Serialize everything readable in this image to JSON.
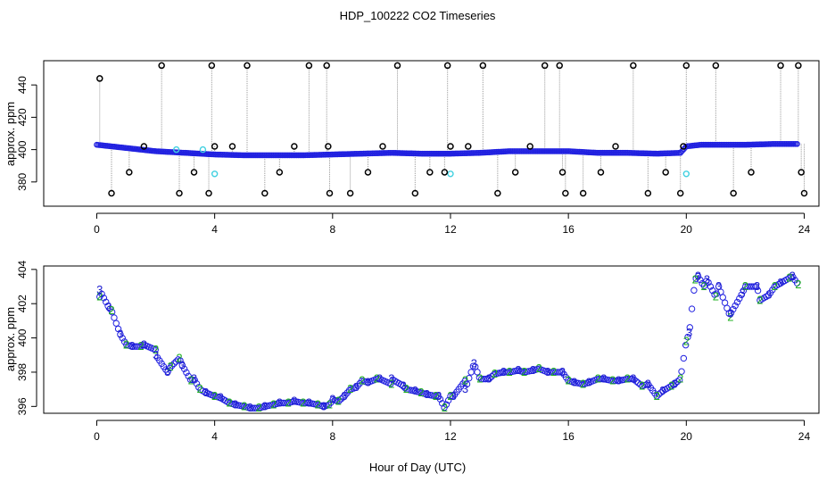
{
  "figure_title": "HDP_100222  CO2 Timeseries",
  "shared_xlabel": "Hour of Day (UTC)",
  "colors": {
    "axis": "#000000",
    "blue_points": "#2020e0",
    "cyan_points": "#40d0e0",
    "black_points": "#000000",
    "guide_lines": "#9a9a9a",
    "series2": "#20b020",
    "series3": "#2020d0"
  },
  "chart_data": [
    {
      "type": "scatter",
      "panel": "top",
      "title": "",
      "xlabel": "",
      "ylabel": "approx. ppm",
      "xlim": [
        -1.8,
        24.5
      ],
      "ylim": [
        365,
        455
      ],
      "x_ticks": [
        0,
        4,
        8,
        12,
        16,
        20,
        24
      ],
      "y_ticks": [
        380,
        400,
        420,
        440
      ],
      "baseline_series": {
        "name": "blue",
        "x": [
          0,
          0.5,
          1,
          1.5,
          2,
          2.5,
          3,
          3.5,
          4,
          5,
          6,
          7,
          8,
          9,
          10,
          11,
          12,
          13,
          14,
          15,
          16,
          17,
          18,
          19,
          19.8,
          20,
          20.5,
          21,
          22,
          23,
          23.8
        ],
        "values": [
          403,
          402,
          401,
          400,
          399,
          398.5,
          398,
          397.5,
          397,
          396.5,
          396.5,
          396.5,
          397,
          397.5,
          398,
          397.5,
          397.5,
          398,
          399,
          399,
          399,
          398,
          398,
          397.5,
          398,
          402,
          403,
          403,
          403,
          403.5,
          403.5
        ]
      },
      "spikes": {
        "name": "black",
        "x": [
          0.1,
          0.5,
          1.1,
          1.6,
          2.2,
          2.8,
          3.3,
          3.8,
          3.9,
          4.0,
          4.6,
          5.1,
          5.7,
          6.2,
          6.7,
          7.2,
          7.8,
          7.85,
          7.9,
          8.6,
          9.2,
          9.7,
          10.2,
          10.8,
          11.3,
          11.8,
          11.9,
          12.0,
          12.6,
          13.1,
          13.6,
          14.2,
          14.7,
          15.2,
          15.7,
          15.8,
          15.9,
          16.5,
          17.1,
          17.6,
          18.2,
          18.7,
          19.3,
          19.8,
          19.9,
          20.0,
          21.0,
          21.6,
          22.2,
          23.2,
          23.8,
          23.9,
          24.0
        ],
        "values": [
          444,
          373,
          386,
          402,
          452,
          373,
          386,
          373,
          452,
          402,
          402,
          452,
          373,
          386,
          402,
          452,
          452,
          402,
          373,
          373,
          386,
          402,
          452,
          373,
          386,
          386,
          452,
          402,
          402,
          452,
          373,
          386,
          402,
          452,
          452,
          386,
          373,
          373,
          386,
          402,
          452,
          373,
          386,
          373,
          402,
          452,
          452,
          373,
          386,
          452,
          452,
          386,
          373
        ]
      },
      "cyan_points": {
        "name": "cyan",
        "x": [
          2.7,
          3.6,
          4.0,
          12.0,
          20.0
        ],
        "values": [
          400,
          400,
          385,
          385,
          385
        ]
      }
    },
    {
      "type": "scatter",
      "panel": "bottom",
      "title": "",
      "xlabel": "Hour of Day (UTC)",
      "ylabel": "approx. ppm",
      "xlim": [
        -1.8,
        24.5
      ],
      "ylim": [
        395.6,
        404.2
      ],
      "x_ticks": [
        0,
        4,
        8,
        12,
        16,
        20,
        24
      ],
      "y_ticks": [
        396,
        398,
        400,
        402,
        404
      ],
      "series": [
        {
          "name": "2",
          "x": [
            0.1,
            0.5,
            1.0,
            1.5,
            2.0,
            2.5,
            2.8,
            3.2,
            3.5,
            4.0,
            4.5,
            5.0,
            5.5,
            6.0,
            6.5,
            7.0,
            7.5,
            7.9,
            8.2,
            8.6,
            9.0,
            9.5,
            10.0,
            10.5,
            11.0,
            11.5,
            11.8,
            12.0,
            12.5,
            13.0,
            13.5,
            14.0,
            14.5,
            15.0,
            15.5,
            16.0,
            16.5,
            17.0,
            17.5,
            18.0,
            18.5,
            19.0,
            19.5,
            19.8,
            20.0,
            20.3,
            20.6,
            21.0,
            21.5,
            22.0,
            22.5,
            23.0,
            23.5,
            23.8
          ],
          "values": [
            402.4,
            401.6,
            399.6,
            399.5,
            399.3,
            398.3,
            398.8,
            397.5,
            397.0,
            396.6,
            396.2,
            396.0,
            395.9,
            396.1,
            396.2,
            396.2,
            396.1,
            396.1,
            396.3,
            397.0,
            397.5,
            397.6,
            397.3,
            397.0,
            396.8,
            396.6,
            395.9,
            396.6,
            397.5,
            397.6,
            397.9,
            398.0,
            398.0,
            398.2,
            398.0,
            397.5,
            397.3,
            397.6,
            397.5,
            397.6,
            397.2,
            396.6,
            397.2,
            397.6,
            399.8,
            403.4,
            403.0,
            402.4,
            401.2,
            403.0,
            402.2,
            403.0,
            403.5,
            403.1
          ]
        },
        {
          "name": "3",
          "x": [
            0.1,
            0.4,
            0.8,
            1.2,
            1.6,
            2.0,
            2.4,
            2.9,
            3.3,
            3.7,
            4.2,
            4.7,
            5.2,
            5.7,
            6.2,
            6.7,
            7.2,
            7.7,
            8.0,
            8.4,
            8.8,
            9.2,
            9.6,
            10.0,
            10.4,
            10.8,
            11.2,
            11.6,
            12.1,
            12.5,
            12.8,
            13.3,
            13.8,
            14.3,
            14.8,
            15.3,
            15.8,
            16.2,
            16.7,
            17.2,
            17.7,
            18.2,
            18.7,
            19.2,
            19.6,
            20.1,
            20.4,
            20.7,
            21.1,
            21.5,
            21.9,
            22.4,
            22.8,
            23.2,
            23.6
          ],
          "values": [
            402.8,
            401.8,
            400.2,
            399.5,
            399.6,
            399.0,
            398.0,
            398.4,
            397.6,
            396.8,
            396.5,
            396.1,
            395.9,
            396.0,
            396.2,
            396.3,
            396.2,
            396.0,
            396.4,
            396.6,
            397.1,
            397.4,
            397.6,
            397.6,
            397.2,
            396.9,
            396.7,
            396.6,
            396.6,
            397.0,
            398.5,
            397.6,
            398.0,
            398.1,
            398.1,
            398.0,
            398.0,
            397.4,
            397.4,
            397.6,
            397.5,
            397.6,
            397.3,
            396.9,
            397.3,
            400.3,
            403.6,
            403.4,
            403.0,
            401.4,
            402.6,
            403.0,
            402.5,
            403.2,
            403.6
          ]
        }
      ]
    }
  ]
}
